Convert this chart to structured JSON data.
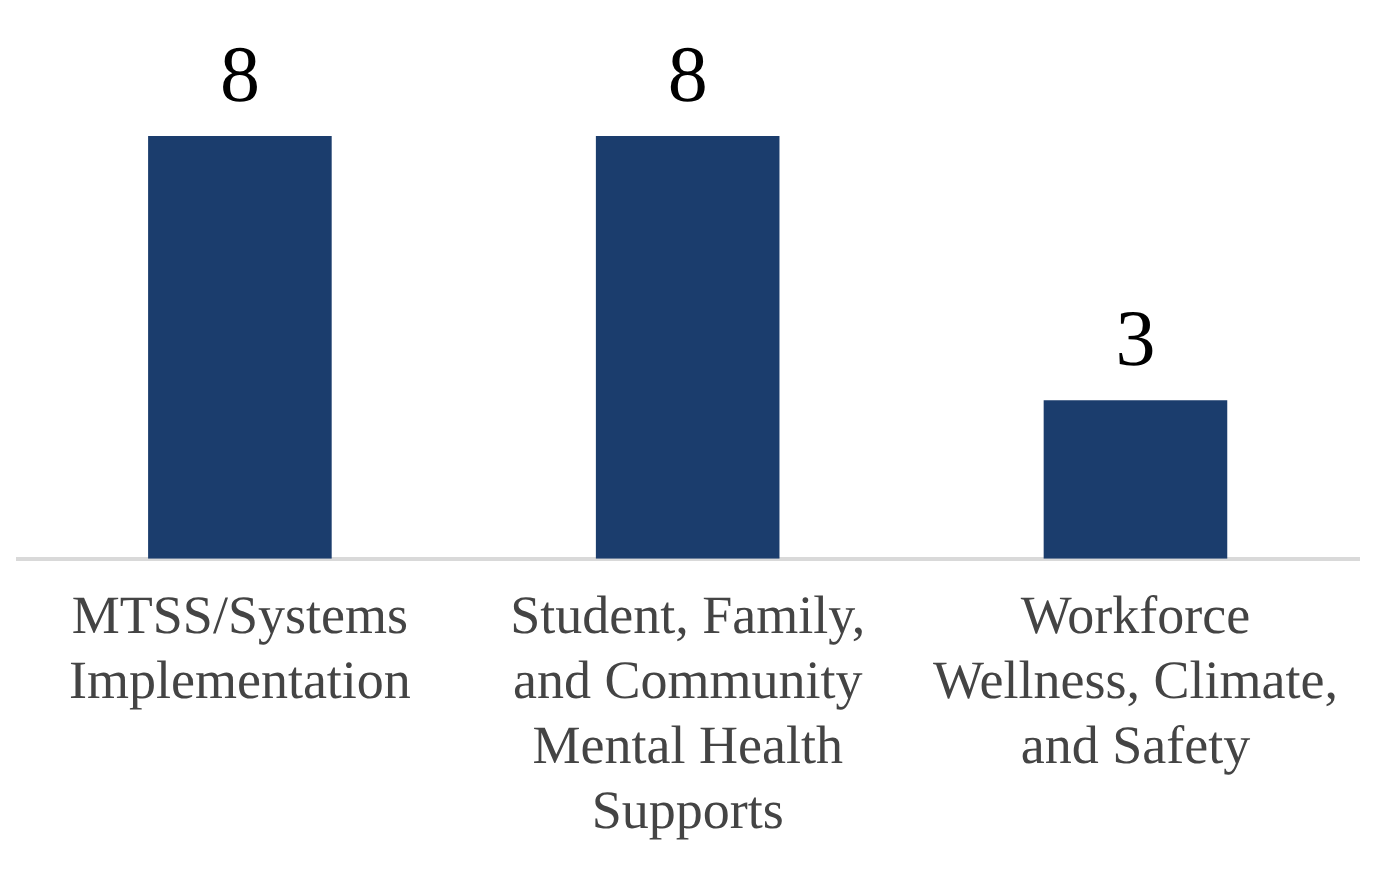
{
  "chart_data": {
    "type": "bar",
    "categories": [
      "MTSS/Systems Implementation",
      "Student, Family, and Community Mental Health Supports",
      "Workforce Wellness, Climate, and Safety"
    ],
    "values": [
      8,
      8,
      3
    ],
    "color": "#1b3d6d",
    "data_labels": true,
    "grid": false,
    "legend": false
  }
}
